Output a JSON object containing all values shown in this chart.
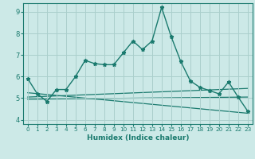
{
  "xlabel": "Humidex (Indice chaleur)",
  "xlim": [
    -0.5,
    23.5
  ],
  "ylim": [
    3.8,
    9.4
  ],
  "yticks": [
    4,
    5,
    6,
    7,
    8,
    9
  ],
  "xticks": [
    0,
    1,
    2,
    3,
    4,
    5,
    6,
    7,
    8,
    9,
    10,
    11,
    12,
    13,
    14,
    15,
    16,
    17,
    18,
    19,
    20,
    21,
    22,
    23
  ],
  "bg_color": "#cce9e7",
  "grid_color": "#aacfcc",
  "line_color": "#1a7a6e",
  "line1_x": [
    0,
    1,
    2,
    3,
    4,
    5,
    6,
    7,
    8,
    9,
    10,
    11,
    12,
    13,
    14,
    15,
    16,
    17,
    18,
    19,
    20,
    21,
    22,
    23
  ],
  "line1_y": [
    5.9,
    5.2,
    4.85,
    5.4,
    5.4,
    6.0,
    6.75,
    6.6,
    6.55,
    6.55,
    7.1,
    7.65,
    7.25,
    7.65,
    9.2,
    7.85,
    6.7,
    5.8,
    5.5,
    5.35,
    5.2,
    5.75,
    5.05,
    4.4
  ],
  "line2_x": [
    0,
    23
  ],
  "line2_y": [
    5.25,
    4.3
  ],
  "line3_x": [
    0,
    23
  ],
  "line3_y": [
    5.05,
    5.45
  ],
  "line4_x": [
    0,
    23
  ],
  "line4_y": [
    4.95,
    5.05
  ]
}
